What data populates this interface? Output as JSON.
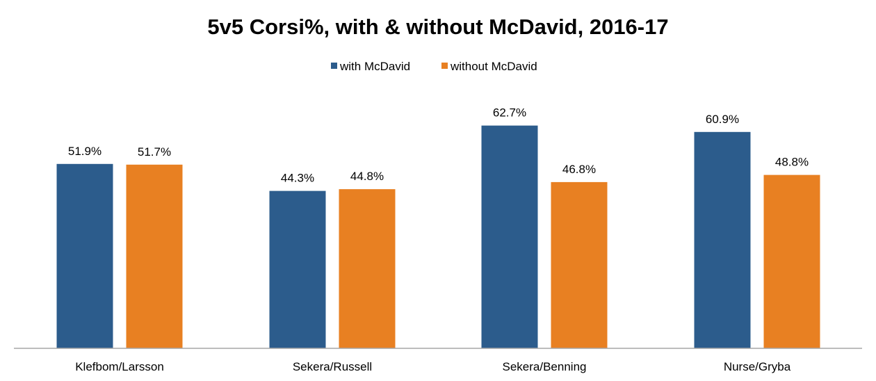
{
  "chart_data": {
    "type": "bar",
    "title": "5v5 Corsi%, with & without McDavid, 2016-17",
    "xlabel": "",
    "ylabel": "",
    "categories": [
      "Klefbom/Larsson",
      "Sekera/Russell",
      "Sekera/Benning",
      "Nurse/Gryba"
    ],
    "series": [
      {
        "name": "with McDavid",
        "color": "#2c5c8c",
        "values": [
          51.9,
          44.3,
          62.7,
          60.9
        ],
        "labels": [
          "51.9%",
          "44.3%",
          "62.7%",
          "60.9%"
        ]
      },
      {
        "name": "without McDavid",
        "color": "#e88022",
        "values": [
          51.7,
          44.8,
          46.8,
          48.8
        ],
        "labels": [
          "51.7%",
          "44.8%",
          "46.8%",
          "48.8%"
        ]
      }
    ],
    "ylim": [
      0,
      70
    ],
    "grid": false,
    "legend_position": "top-center",
    "axis_color": "#a6a6a6"
  }
}
